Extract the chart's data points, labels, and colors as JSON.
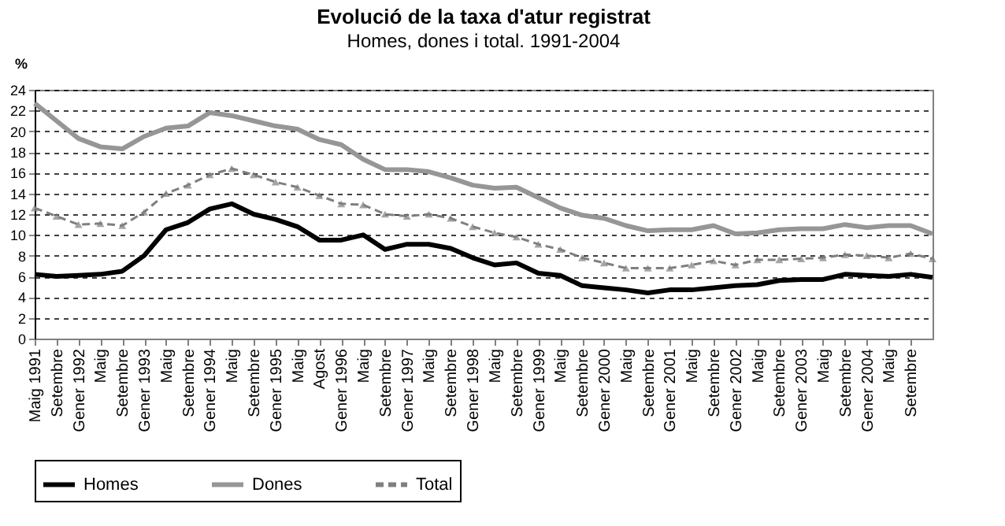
{
  "chart_data": {
    "type": "line",
    "title": "Evolució de la taxa d'atur registrat",
    "subtitle": "Homes, dones i total. 1991-2004",
    "ylabel": "%",
    "categories": [
      "Maig 1991",
      "Setembre",
      "Gener 1992",
      "Maig",
      "Setembre",
      "Gener 1993",
      "Maig",
      "Setembre",
      "Gener 1994",
      "Maig",
      "Setembre",
      "Gener 1995",
      "Maig",
      "Agost",
      "Gener 1996",
      "Maig",
      "Setembre",
      "Gener 1997",
      "Maig",
      "Setembre",
      "Gener 1998",
      "Maig",
      "Setembre",
      "Gener 1999",
      "Maig",
      "Setembre",
      "Gener 2000",
      "Maig",
      "Setembre",
      "Gener 2001",
      "Maig",
      "Setembre",
      "Gener 2002",
      "Maig",
      "Setembre",
      "Gener 2003",
      "Maig",
      "Setembre",
      "Gener 2004",
      "Maig",
      "Setembre",
      null
    ],
    "series": [
      {
        "name": "Homes",
        "color": "#000000",
        "line_style": "solid",
        "marker": "none",
        "values": [
          6.2,
          6.0,
          6.1,
          6.2,
          6.5,
          8.0,
          10.5,
          11.2,
          12.5,
          13.0,
          12.0,
          11.5,
          10.8,
          9.5,
          9.5,
          10.0,
          8.6,
          9.1,
          9.1,
          8.7,
          7.8,
          7.1,
          7.3,
          6.3,
          6.1,
          5.1,
          4.9,
          4.7,
          4.4,
          4.7,
          4.7,
          4.9,
          5.1,
          5.2,
          5.6,
          5.7,
          5.7,
          6.2,
          6.1,
          6.0,
          6.2,
          5.9
        ]
      },
      {
        "name": "Dones",
        "color": "#969696",
        "line_style": "solid",
        "marker": "none",
        "values": [
          22.7,
          21.0,
          19.3,
          18.5,
          18.3,
          19.5,
          20.3,
          20.5,
          21.8,
          21.5,
          21.0,
          20.5,
          20.2,
          19.2,
          18.7,
          17.3,
          16.3,
          16.3,
          16.1,
          15.5,
          14.8,
          14.5,
          14.6,
          13.6,
          12.6,
          11.9,
          11.6,
          10.9,
          10.4,
          10.5,
          10.5,
          10.9,
          10.1,
          10.2,
          10.5,
          10.6,
          10.6,
          11.0,
          10.7,
          10.9,
          10.9,
          10.1
        ]
      },
      {
        "name": "Total",
        "color": "#7f7f7f",
        "line_style": "dashed",
        "marker": "triangle",
        "values": [
          12.6,
          11.8,
          11.0,
          11.1,
          10.9,
          12.2,
          14.0,
          14.8,
          15.8,
          16.4,
          15.8,
          15.1,
          14.6,
          13.8,
          13.0,
          12.9,
          12.0,
          11.8,
          12.0,
          11.6,
          10.8,
          10.2,
          9.8,
          9.1,
          8.6,
          7.8,
          7.3,
          6.8,
          6.8,
          6.8,
          7.1,
          7.5,
          7.1,
          7.6,
          7.6,
          7.7,
          7.8,
          8.1,
          8.0,
          7.8,
          8.2,
          7.7
        ]
      }
    ],
    "ylim": [
      0,
      24
    ],
    "yticks": [
      0,
      2,
      4,
      6,
      8,
      10,
      12,
      14,
      16,
      18,
      20,
      22,
      24
    ],
    "grid": "y",
    "legend": "bottom"
  }
}
